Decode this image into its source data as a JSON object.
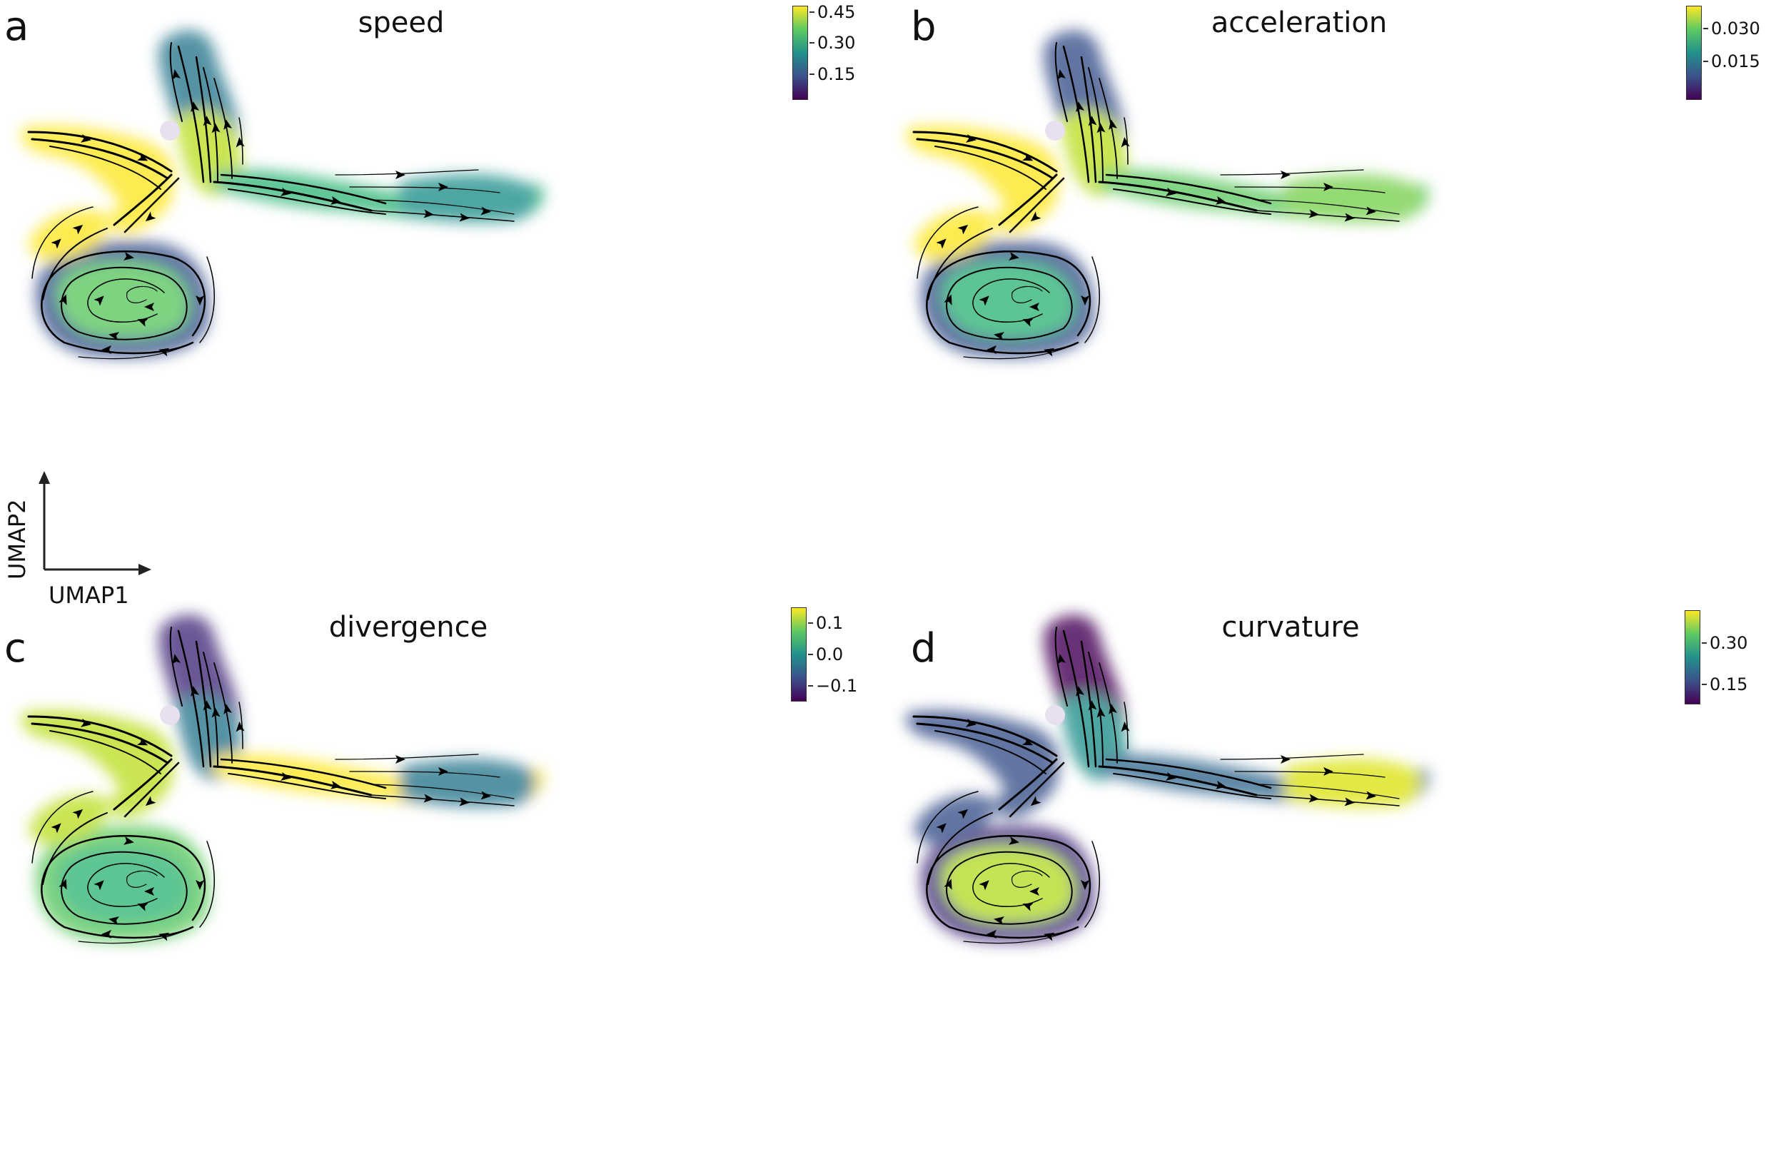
{
  "panels": [
    {
      "letter": "a",
      "title": "speed",
      "colorbar_ticks": [
        "0.45",
        "0.30",
        "0.15"
      ],
      "colors": {
        "head": "#2a788e",
        "upper_arm": "#bddf26",
        "left_arm": "#fde725",
        "right_arm": "#35b779",
        "tail": "#21918c",
        "spiral_outer": "#3b528b",
        "spiral_inner": "#5ec962"
      }
    },
    {
      "letter": "b",
      "title": "acceleration",
      "colorbar_ticks": [
        "0.030",
        "0.015"
      ],
      "colors": {
        "head": "#3b528b",
        "upper_arm": "#bddf26",
        "left_arm": "#fde725",
        "right_arm": "#5ec962",
        "tail": "#7ad151",
        "spiral_outer": "#3b528b",
        "spiral_inner": "#35b779"
      }
    },
    {
      "letter": "c",
      "title": "divergence",
      "colorbar_ticks": [
        "0.1",
        "0.0",
        "−0.1"
      ],
      "colors": {
        "head": "#472d7b",
        "upper_arm": "#2a788e",
        "left_arm": "#bddf26",
        "right_arm": "#fde725",
        "tail": "#2a788e",
        "spiral_outer": "#5ec962",
        "spiral_inner": "#35b779"
      }
    },
    {
      "letter": "d",
      "title": "curvature",
      "colorbar_ticks": [
        "0.30",
        "0.15"
      ],
      "colors": {
        "head": "#440154",
        "upper_arm": "#21918c",
        "left_arm": "#3b528b",
        "right_arm": "#31688e",
        "tail": "#dce319",
        "spiral_outer": "#472d7b",
        "spiral_inner": "#b5de2b"
      }
    }
  ],
  "axes": {
    "x_label": "UMAP1",
    "y_label": "UMAP2"
  }
}
